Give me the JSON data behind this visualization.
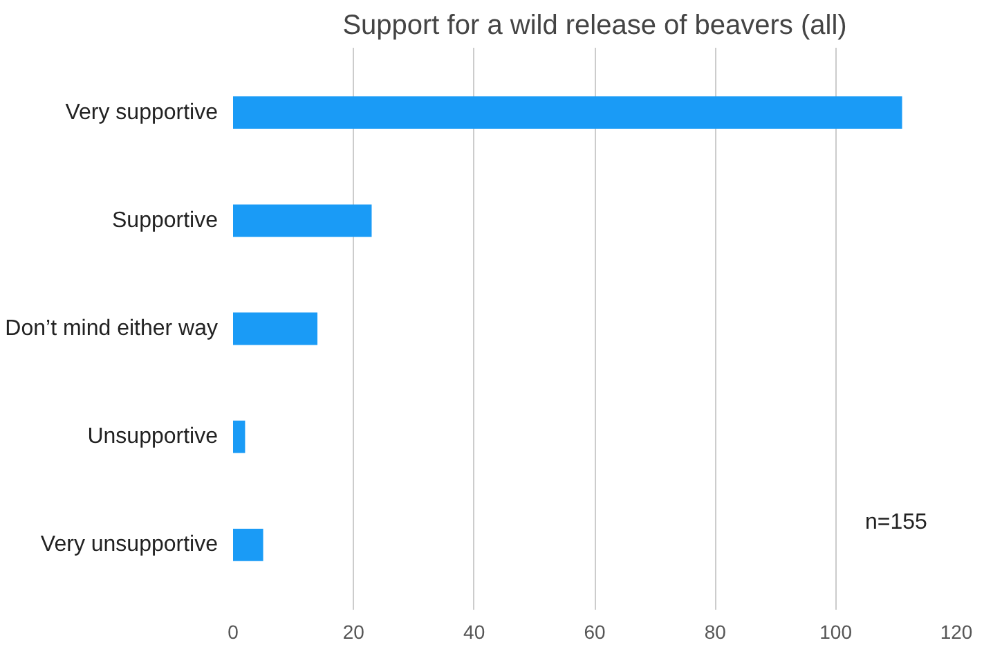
{
  "chart_data": {
    "type": "bar",
    "orientation": "horizontal",
    "title": "Support for a wild release of beavers (all)",
    "categories": [
      "Very supportive",
      "Supportive",
      "Don’t mind either way",
      "Unsupportive",
      "Very unsupportive"
    ],
    "values": [
      111,
      23,
      14,
      2,
      5
    ],
    "color": "#1a9bf6",
    "xlim": [
      0,
      120
    ],
    "xticks": [
      0,
      20,
      40,
      60,
      80,
      100,
      120
    ],
    "grid": "x",
    "annotations": [
      "n=155"
    ]
  }
}
